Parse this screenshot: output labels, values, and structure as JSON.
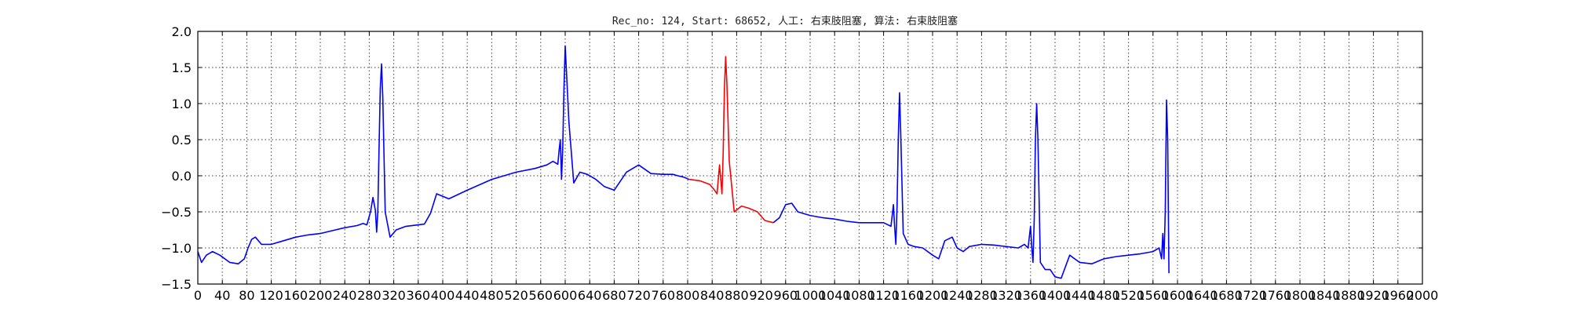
{
  "chart_data": {
    "type": "line",
    "title": "Rec_no: 124, Start: 68652, 人工: 右束肢阻塞, 算法: 右束肢阻塞",
    "xlabel": "",
    "ylabel": "",
    "xlim": [
      0,
      1000
    ],
    "ylim": [
      -1.5,
      2.0
    ],
    "grid": true,
    "yticks": [
      -1.5,
      -1.0,
      -0.5,
      0.0,
      0.5,
      1.0,
      1.5,
      2.0
    ],
    "ytick_labels": [
      "−1.5",
      "−1.0",
      "−0.5",
      "0.0",
      "0.5",
      "1.0",
      "1.5",
      "2.0"
    ],
    "xticks": [
      0,
      20,
      40,
      60,
      80,
      100,
      120,
      140,
      160,
      180,
      200,
      220,
      240,
      260,
      280,
      300,
      320,
      340,
      360,
      380,
      400,
      420,
      440,
      460,
      480,
      500,
      520,
      540,
      560,
      580,
      600,
      620,
      640,
      660,
      680,
      700,
      720,
      740,
      760,
      780,
      800,
      820,
      840,
      860,
      880,
      900,
      920,
      940,
      960,
      980,
      1000
    ],
    "xtick_labels": [
      "0",
      "40",
      "80",
      "120",
      "160",
      "200",
      "240",
      "280",
      "320",
      "360",
      "400",
      "440",
      "480",
      "520",
      "560",
      "600",
      "640",
      "680",
      "720",
      "760",
      "800",
      "840",
      "880",
      "920",
      "960",
      "1000",
      "1040",
      "1080",
      "1120",
      "1160",
      "1200",
      "1240",
      "1280",
      "1320",
      "1360",
      "1400",
      "1440",
      "1480",
      "1520",
      "1560",
      "1600",
      "1640",
      "1680",
      "1720",
      "1760",
      "1800",
      "1840",
      "1880",
      "1920",
      "1960",
      "2000"
    ],
    "colors": {
      "main": "#0000ff",
      "highlight": "#ff0000",
      "grid": "#000000",
      "axes": "#000000"
    },
    "series": [
      {
        "color": "#0000ff",
        "x": [
          0,
          3,
          7,
          12,
          18,
          26,
          33,
          38,
          41,
          44,
          47,
          52,
          60,
          70,
          80,
          90,
          100,
          110,
          120,
          130,
          135,
          138,
          141,
          143,
          145,
          146,
          147,
          148,
          149,
          150,
          151,
          153,
          157,
          162,
          170,
          180,
          185,
          190,
          195,
          205,
          220,
          240,
          260,
          275,
          285,
          290,
          294,
          295,
          296,
          297,
          298,
          299,
          300,
          303,
          307,
          312,
          318,
          325,
          332,
          340,
          350,
          360,
          370,
          380,
          388,
          392,
          397,
          401
        ],
        "y": [
          -1.05,
          -1.2,
          -1.1,
          -1.05,
          -1.1,
          -1.2,
          -1.22,
          -1.15,
          -1.0,
          -0.88,
          -0.85,
          -0.95,
          -0.95,
          -0.9,
          -0.85,
          -0.82,
          -0.8,
          -0.76,
          -0.72,
          -0.69,
          -0.66,
          -0.68,
          -0.5,
          -0.3,
          -0.48,
          -0.78,
          -0.5,
          0.4,
          1.2,
          1.55,
          1.1,
          -0.5,
          -0.85,
          -0.75,
          -0.7,
          -0.68,
          -0.67,
          -0.52,
          -0.25,
          -0.32,
          -0.2,
          -0.05,
          0.05,
          0.1,
          0.15,
          0.2,
          0.16,
          0.35,
          0.5,
          -0.05,
          0.4,
          1.2,
          1.8,
          0.75,
          -0.1,
          0.05,
          0.02,
          -0.05,
          -0.15,
          -0.2,
          0.05,
          0.15,
          0.03,
          0.02,
          0.02,
          0.0,
          -0.02,
          -0.05
        ]
      },
      {
        "color": "#ff0000",
        "x": [
          401,
          410,
          418,
          422,
          424,
          426,
          428,
          429,
          430,
          431,
          432,
          434,
          438,
          444,
          450,
          457,
          463,
          470
        ],
        "y": [
          -0.05,
          -0.07,
          -0.12,
          -0.2,
          -0.25,
          0.15,
          -0.25,
          0.3,
          1.2,
          1.65,
          1.3,
          0.2,
          -0.5,
          -0.42,
          -0.45,
          -0.5,
          -0.62,
          -0.65
        ]
      },
      {
        "color": "#0000ff",
        "x": [
          470,
          475,
          480,
          485,
          490,
          500,
          510,
          520,
          530,
          540,
          550,
          560,
          566,
          568,
          569,
          570,
          571,
          572,
          573,
          574,
          576,
          580,
          585,
          592,
          600,
          605,
          610,
          616,
          620,
          625,
          630,
          640,
          650,
          660,
          670,
          675,
          678,
          679,
          680,
          681,
          682,
          683,
          684,
          685,
          686,
          688,
          692,
          696,
          700,
          705,
          712,
          720,
          730,
          740,
          750,
          760,
          770,
          780,
          785,
          787,
          788,
          789,
          790,
          791,
          792,
          793
        ],
        "y": [
          -0.65,
          -0.58,
          -0.4,
          -0.38,
          -0.5,
          -0.55,
          -0.58,
          -0.6,
          -0.63,
          -0.65,
          -0.65,
          -0.65,
          -0.7,
          -0.4,
          -0.7,
          -0.95,
          -0.4,
          0.5,
          1.15,
          0.6,
          -0.8,
          -0.95,
          -0.98,
          -1.0,
          -1.1,
          -1.15,
          -0.9,
          -0.85,
          -1.0,
          -1.05,
          -0.98,
          -0.95,
          -0.96,
          -0.98,
          -1.0,
          -0.95,
          -1.0,
          -0.85,
          -0.7,
          -1.0,
          -1.2,
          -0.6,
          0.5,
          1.0,
          0.5,
          -1.2,
          -1.3,
          -1.3,
          -1.4,
          -1.42,
          -1.1,
          -1.2,
          -1.22,
          -1.15,
          -1.12,
          -1.1,
          -1.08,
          -1.05,
          -1.0,
          -1.15,
          -0.8,
          -1.15,
          -0.5,
          1.05,
          0.5,
          -1.35
        ]
      }
    ]
  }
}
